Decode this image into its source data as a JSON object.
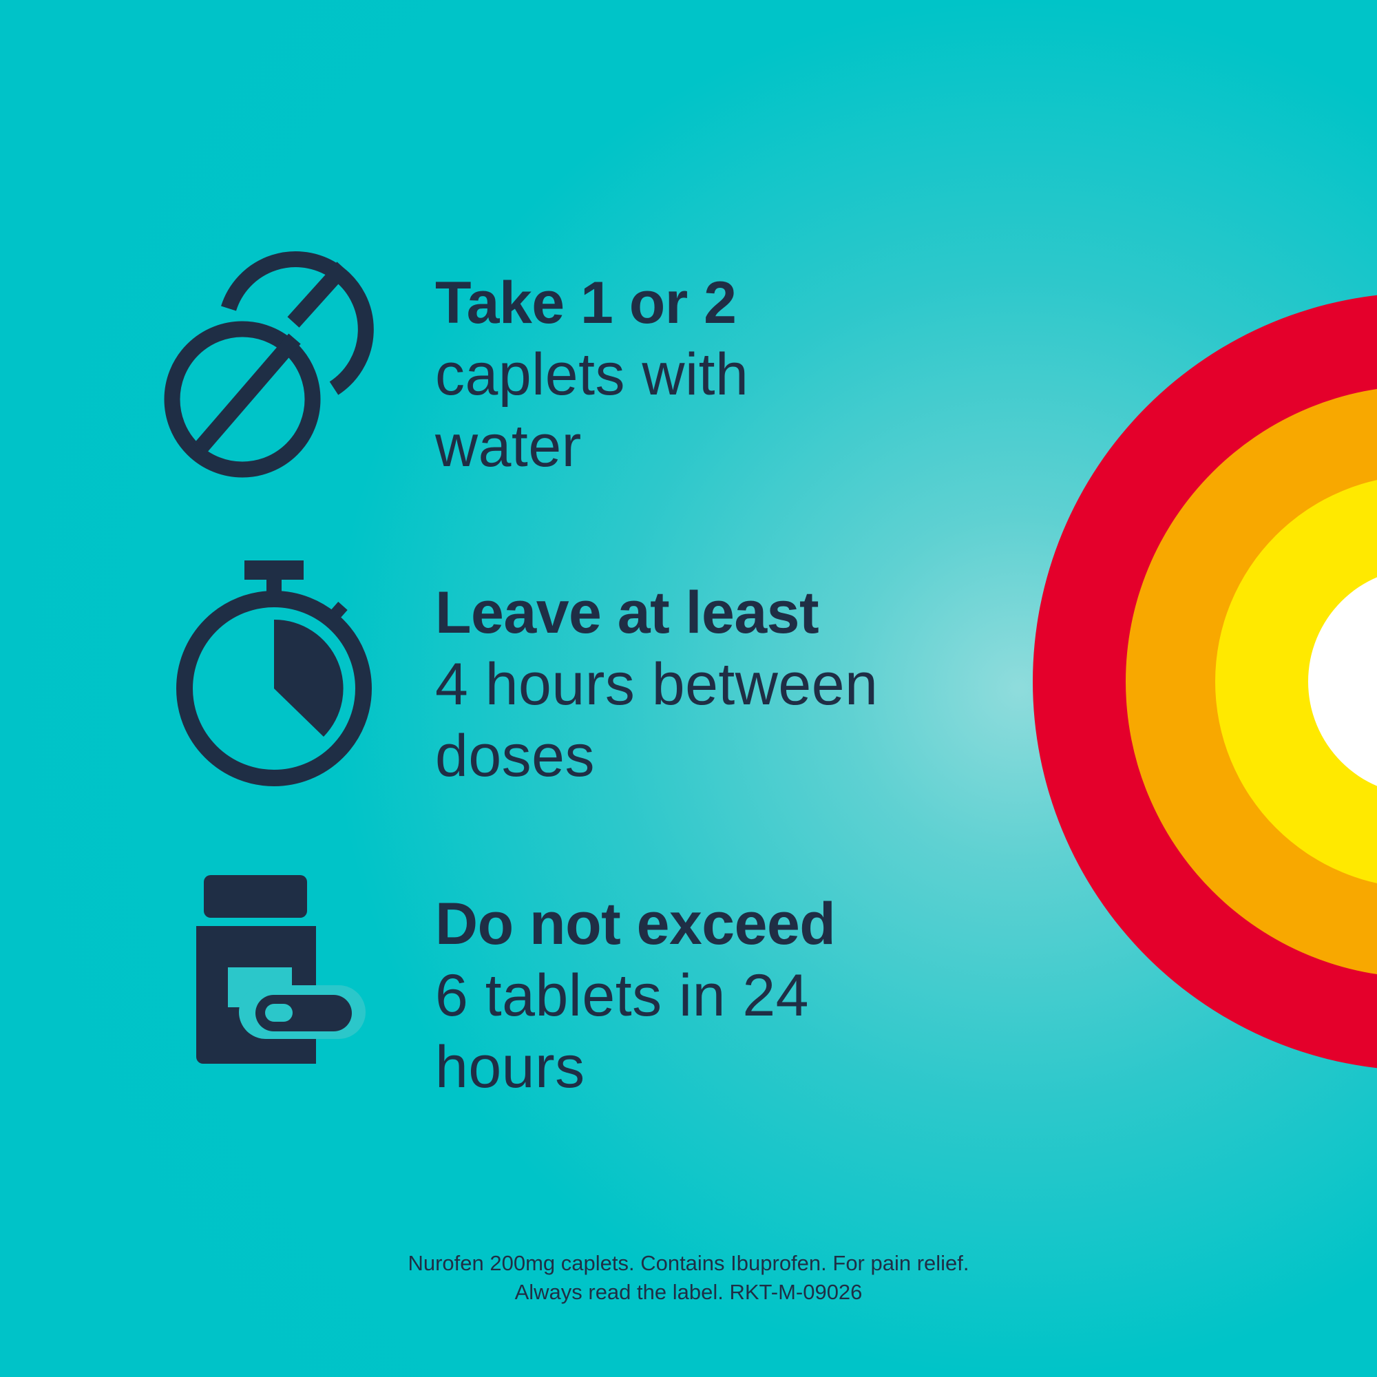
{
  "colors": {
    "background": "#00c3c8",
    "ink": "#1f2e45",
    "ring_red": "#e4002b",
    "ring_orange": "#f8a800",
    "ring_yellow": "#ffe900",
    "ring_center": "#ffffff"
  },
  "instructions": [
    {
      "icon": "tablets-icon",
      "lead": "Take 1 or 2",
      "line1": "caplets with",
      "line2": "water"
    },
    {
      "icon": "stopwatch-icon",
      "lead": "Leave at least",
      "line1": "4 hours between",
      "line2": "doses"
    },
    {
      "icon": "medicine-bottle-icon",
      "lead": "Do not exceed",
      "line1": "6 tablets in 24",
      "line2": "hours"
    }
  ],
  "disclaimer": {
    "line1": "Nurofen 200mg caplets. Contains Ibuprofen. For pain relief.",
    "line2": "Always read the label. RKT-M-09026"
  }
}
